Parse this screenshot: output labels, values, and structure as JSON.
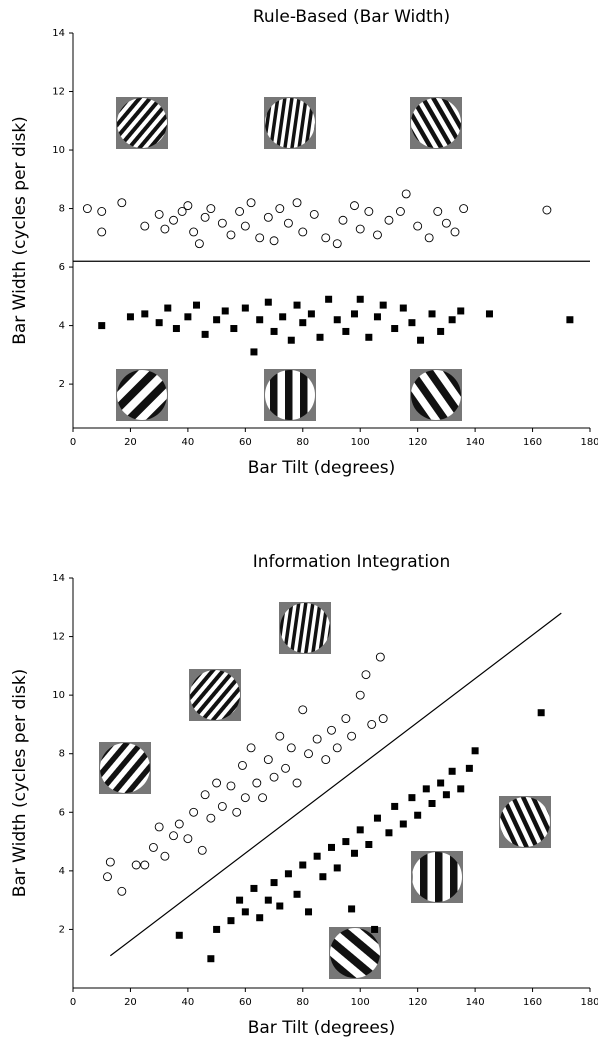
{
  "chart_data": [
    {
      "type": "scatter",
      "title": "Rule-Based (Bar Width)",
      "xlabel": "Bar Tilt (degrees)",
      "ylabel": "Bar Width (cycles per disk)",
      "xlim": [
        0,
        180
      ],
      "ylim": [
        0.5,
        14
      ],
      "xticks": [
        0,
        20,
        40,
        60,
        80,
        100,
        120,
        140,
        160,
        180
      ],
      "yticks": [
        2,
        4,
        6,
        8,
        10,
        12,
        14
      ],
      "boundary": {
        "x": [
          0,
          180
        ],
        "y": [
          6.2,
          6.2
        ]
      },
      "series": [
        {
          "marker": "circle",
          "color": "#000000",
          "x": [
            5,
            10,
            10,
            17,
            25,
            30,
            32,
            35,
            38,
            40,
            42,
            44,
            46,
            48,
            52,
            55,
            58,
            60,
            62,
            65,
            68,
            70,
            72,
            75,
            78,
            80,
            84,
            88,
            92,
            94,
            98,
            100,
            103,
            106,
            110,
            114,
            116,
            120,
            124,
            127,
            130,
            133,
            136,
            165
          ],
          "values": [
            8.0,
            7.2,
            7.9,
            8.2,
            7.4,
            7.8,
            7.3,
            7.6,
            7.9,
            8.1,
            7.2,
            6.8,
            7.7,
            8.0,
            7.5,
            7.1,
            7.9,
            7.4,
            8.2,
            7.0,
            7.7,
            6.9,
            8.0,
            7.5,
            8.2,
            7.2,
            7.8,
            7.0,
            6.8,
            7.6,
            8.1,
            7.3,
            7.9,
            7.1,
            7.6,
            7.9,
            8.5,
            7.4,
            7.0,
            7.9,
            7.5,
            7.2,
            8.0,
            7.95
          ]
        },
        {
          "marker": "square",
          "color": "#000000",
          "x": [
            10,
            20,
            25,
            30,
            33,
            36,
            40,
            43,
            46,
            50,
            53,
            56,
            60,
            63,
            65,
            68,
            70,
            73,
            76,
            78,
            80,
            83,
            86,
            89,
            92,
            95,
            98,
            100,
            103,
            106,
            108,
            112,
            115,
            118,
            121,
            125,
            128,
            132,
            135,
            145,
            173
          ],
          "values": [
            4.0,
            4.3,
            4.4,
            4.1,
            4.6,
            3.9,
            4.3,
            4.7,
            3.7,
            4.2,
            4.5,
            3.9,
            4.6,
            3.1,
            4.2,
            4.8,
            3.8,
            4.3,
            3.5,
            4.7,
            4.1,
            4.4,
            3.6,
            4.9,
            4.2,
            3.8,
            4.4,
            4.9,
            3.6,
            4.3,
            4.7,
            3.9,
            4.6,
            4.1,
            3.5,
            4.4,
            3.8,
            4.2,
            4.5,
            4.4,
            4.2
          ]
        }
      ]
    },
    {
      "type": "scatter",
      "title": "Information Integration",
      "xlabel": "Bar Tilt (degrees)",
      "ylabel": "Bar Width (cycles per disk)",
      "xlim": [
        0,
        180
      ],
      "ylim": [
        0,
        14
      ],
      "xticks": [
        0,
        20,
        40,
        60,
        80,
        100,
        120,
        140,
        160,
        180
      ],
      "yticks": [
        2,
        4,
        6,
        8,
        10,
        12,
        14
      ],
      "boundary": {
        "x": [
          13,
          170
        ],
        "y": [
          1.1,
          12.8
        ]
      },
      "series": [
        {
          "marker": "circle",
          "color": "#000000",
          "x": [
            12,
            13,
            17,
            22,
            25,
            28,
            30,
            32,
            35,
            37,
            40,
            42,
            45,
            46,
            48,
            50,
            52,
            55,
            57,
            59,
            60,
            62,
            64,
            66,
            68,
            70,
            72,
            74,
            76,
            78,
            80,
            82,
            85,
            88,
            90,
            92,
            95,
            97,
            100,
            102,
            104,
            107,
            108
          ],
          "values": [
            3.8,
            4.3,
            3.3,
            4.2,
            4.2,
            4.8,
            5.5,
            4.5,
            5.2,
            5.6,
            5.1,
            6.0,
            4.7,
            6.6,
            5.8,
            7.0,
            6.2,
            6.9,
            6.0,
            7.6,
            6.5,
            8.2,
            7.0,
            6.5,
            7.8,
            7.2,
            8.6,
            7.5,
            8.2,
            7.0,
            9.5,
            8.0,
            8.5,
            7.8,
            8.8,
            8.2,
            9.2,
            8.6,
            10.0,
            10.7,
            9.0,
            11.3,
            9.2
          ]
        },
        {
          "marker": "square",
          "color": "#000000",
          "x": [
            37,
            48,
            50,
            55,
            58,
            60,
            63,
            65,
            68,
            70,
            72,
            75,
            78,
            80,
            82,
            85,
            87,
            90,
            92,
            95,
            97,
            98,
            100,
            103,
            105,
            106,
            110,
            112,
            115,
            118,
            120,
            123,
            125,
            128,
            130,
            132,
            135,
            138,
            140,
            163
          ],
          "values": [
            1.8,
            1.0,
            2.0,
            2.3,
            3.0,
            2.6,
            3.4,
            2.4,
            3.0,
            3.6,
            2.8,
            3.9,
            3.2,
            4.2,
            2.6,
            4.5,
            3.8,
            4.8,
            4.1,
            5.0,
            2.7,
            4.6,
            5.4,
            4.9,
            2.0,
            5.8,
            5.3,
            6.2,
            5.6,
            6.5,
            5.9,
            6.8,
            6.3,
            7.0,
            6.6,
            7.4,
            6.8,
            7.5,
            8.1,
            9.4
          ]
        }
      ]
    }
  ]
}
